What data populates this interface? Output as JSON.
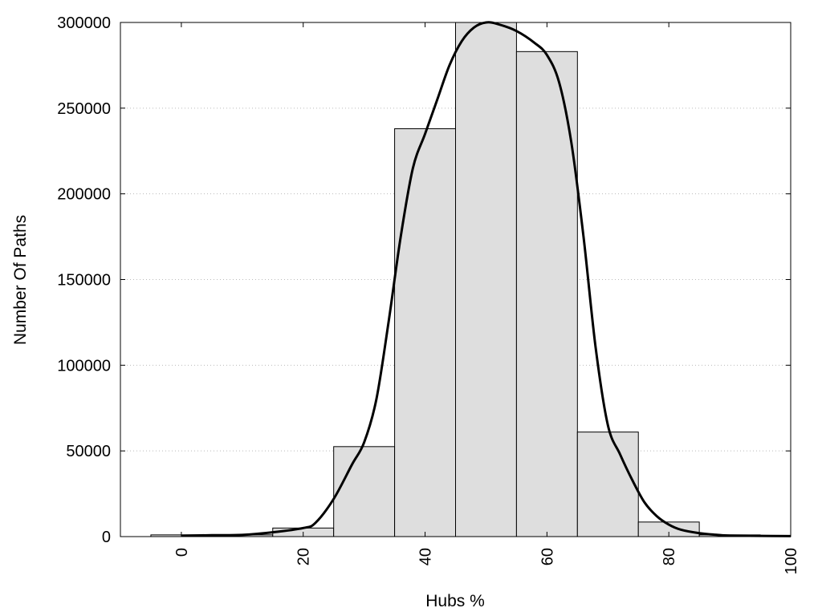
{
  "chart_data": {
    "type": "bar",
    "title": "",
    "xlabel": "Hubs %",
    "ylabel": "Number Of Paths",
    "xlim": [
      -10,
      100
    ],
    "ylim": [
      0,
      300000
    ],
    "grid": true,
    "xticks": [
      0,
      20,
      40,
      60,
      80,
      100
    ],
    "yticks": [
      0,
      50000,
      100000,
      150000,
      200000,
      250000,
      300000
    ],
    "xtick_labels": [
      "0",
      "20",
      "40",
      "60",
      "80",
      "100"
    ],
    "ytick_labels": [
      "0",
      "50000",
      "100000",
      "150000",
      "200000",
      "250000",
      "300000"
    ],
    "bar_width": 10,
    "bars": [
      {
        "x": 0,
        "value": 1000
      },
      {
        "x": 10,
        "value": 1000
      },
      {
        "x": 20,
        "value": 5000
      },
      {
        "x": 30,
        "value": 52500
      },
      {
        "x": 40,
        "value": 238000
      },
      {
        "x": 50,
        "value": 300000
      },
      {
        "x": 60,
        "value": 283000
      },
      {
        "x": 70,
        "value": 61000
      },
      {
        "x": 80,
        "value": 8500
      },
      {
        "x": 90,
        "value": 1000
      }
    ],
    "density_curve": {
      "x": [
        0,
        5,
        10,
        15,
        20,
        22,
        25,
        28,
        30,
        32,
        34,
        36,
        38,
        40,
        42,
        44,
        46,
        48,
        50,
        52,
        55,
        58,
        60,
        62,
        64,
        66,
        68,
        70,
        72,
        74,
        76,
        78,
        80,
        82,
        85,
        88,
        90,
        95,
        100
      ],
      "y": [
        500,
        800,
        1000,
        2500,
        5000,
        8000,
        22000,
        42000,
        55000,
        80000,
        125000,
        175000,
        215000,
        235000,
        255000,
        275000,
        289000,
        297000,
        300000,
        299000,
        295000,
        288000,
        281000,
        265000,
        230000,
        175000,
        110000,
        65000,
        48000,
        33000,
        20000,
        12000,
        7000,
        4000,
        2000,
        1000,
        600,
        400,
        300
      ]
    }
  }
}
